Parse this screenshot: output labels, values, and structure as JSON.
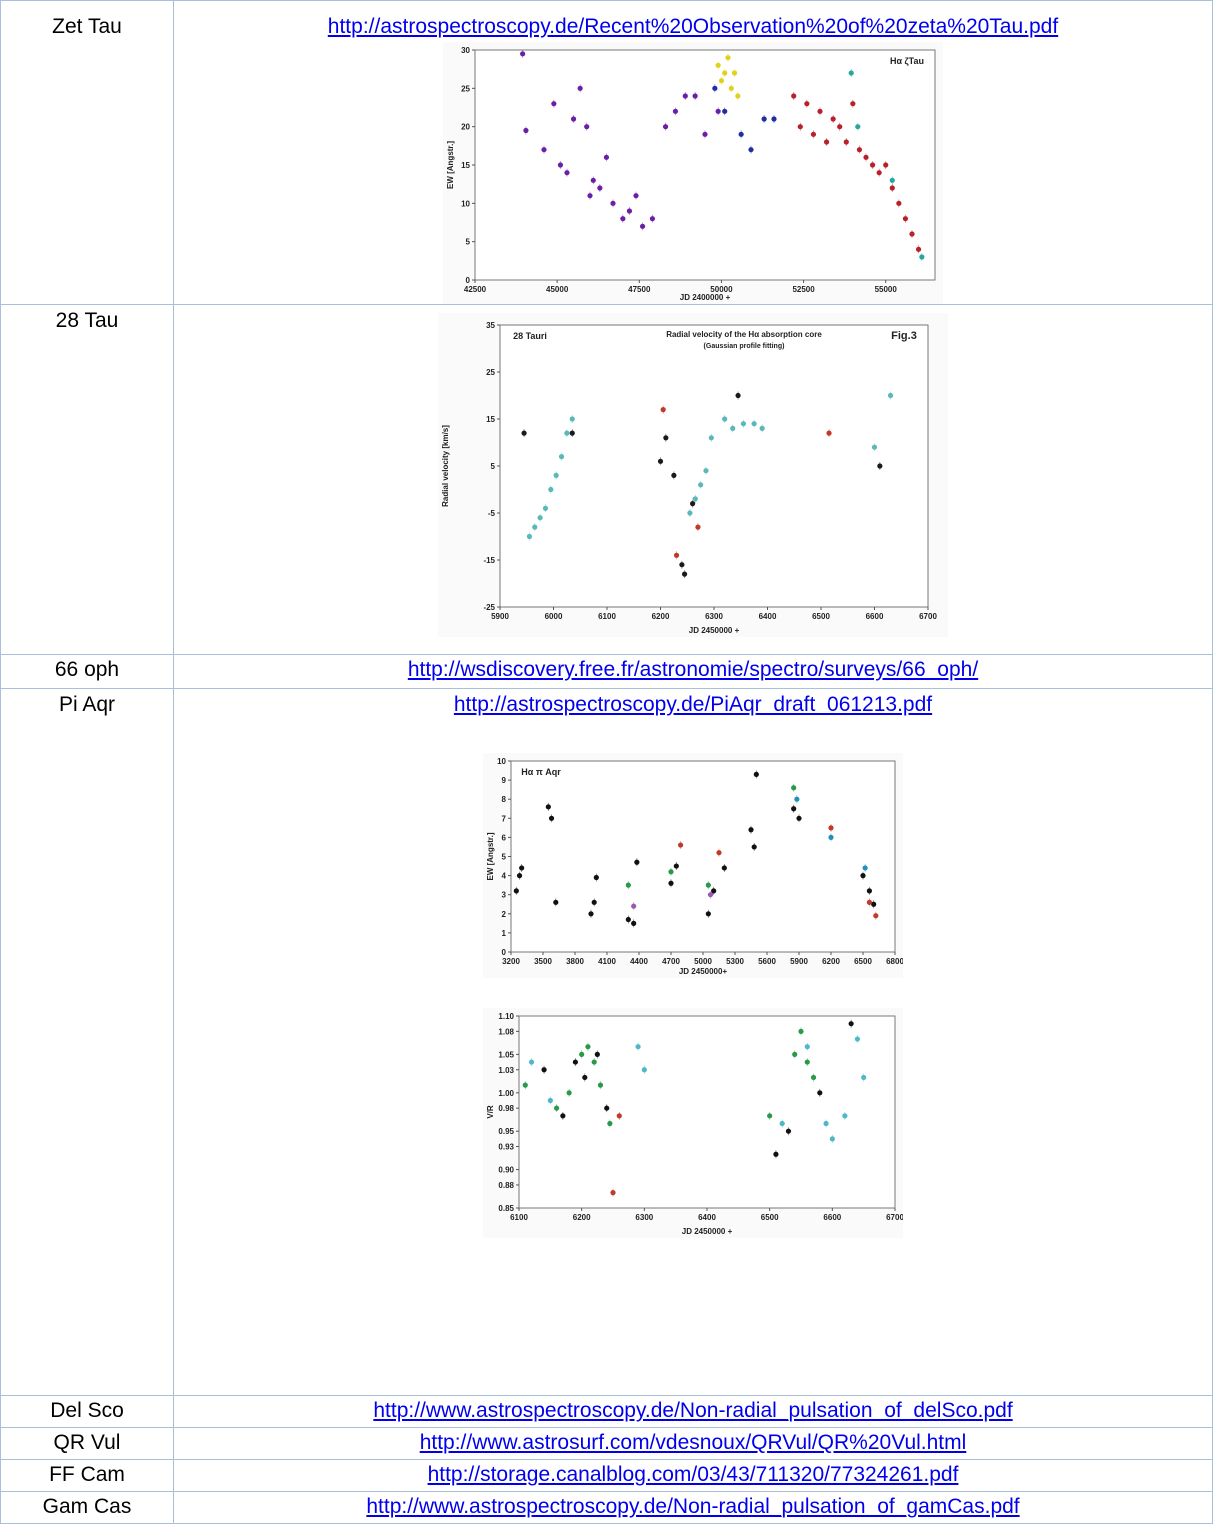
{
  "rows": [
    {
      "name": "Zet Tau",
      "link": "http://astrospectroscopy.de/Recent%20Observation%20of%20zeta%20Tau.pdf"
    },
    {
      "name": "28 Tau",
      "link": ""
    },
    {
      "name": "66 oph",
      "link": "http://wsdiscovery.free.fr/astronomie/spectro/surveys/66_oph/"
    },
    {
      "name": "Pi Aqr",
      "link": "http://astrospectroscopy.de/PiAqr_draft_061213.pdf"
    },
    {
      "name": "Del Sco",
      "link": "http://www.astrospectroscopy.de/Non-radial_pulsation_of_delSco.pdf"
    },
    {
      "name": "QR Vul",
      "link": "http://www.astrosurf.com/vdesnoux/QRVul/QR%20Vul.html"
    },
    {
      "name": "FF Cam",
      "link": "http://storage.canalblog.com/03/43/711320/77324261.pdf"
    },
    {
      "name": "Gam Cas",
      "link": "http://www.astrospectroscopy.de/Non-radial_pulsation_of_gamCas.pdf"
    }
  ],
  "chart_data": [
    {
      "type": "scatter",
      "annotation": "Hα ζTau",
      "xlabel": "JD 2400000 +",
      "ylabel": "EW [Angstr.]",
      "xlim": [
        42500,
        56500
      ],
      "ylim": [
        0,
        30
      ],
      "xticks": [
        "42500",
        "45000",
        "47500",
        "50000",
        "52500",
        "55000"
      ],
      "yticks": [
        "0",
        "5",
        "10",
        "15",
        "20",
        "25",
        "30"
      ],
      "series": [
        {
          "color": "#6a1fa6",
          "points": [
            [
              43950,
              29.5
            ],
            [
              44050,
              19.5
            ],
            [
              44600,
              17
            ],
            [
              44900,
              23
            ],
            [
              45100,
              15
            ],
            [
              45300,
              14
            ],
            [
              45500,
              21
            ],
            [
              45700,
              25
            ],
            [
              45900,
              20
            ],
            [
              46000,
              11
            ],
            [
              46100,
              13
            ],
            [
              46300,
              12
            ],
            [
              46500,
              16
            ],
            [
              46700,
              10
            ],
            [
              47000,
              8
            ],
            [
              47200,
              9
            ],
            [
              47400,
              11
            ],
            [
              47600,
              7
            ],
            [
              47900,
              8
            ],
            [
              48300,
              20
            ],
            [
              48600,
              22
            ],
            [
              48900,
              24
            ],
            [
              49200,
              24
            ],
            [
              49500,
              19
            ],
            [
              49900,
              22
            ]
          ]
        },
        {
          "color": "#e0d21c",
          "points": [
            [
              49900,
              28
            ],
            [
              50000,
              26
            ],
            [
              50100,
              27
            ],
            [
              50200,
              29
            ],
            [
              50300,
              25
            ],
            [
              50400,
              27
            ],
            [
              50500,
              24
            ]
          ]
        },
        {
          "color": "#1f2fa0",
          "points": [
            [
              49800,
              25
            ],
            [
              50100,
              22
            ],
            [
              50600,
              19
            ],
            [
              50900,
              17
            ],
            [
              51300,
              21
            ],
            [
              51600,
              21
            ]
          ]
        },
        {
          "color": "#b8202a",
          "points": [
            [
              52200,
              24
            ],
            [
              52400,
              20
            ],
            [
              52600,
              23
            ],
            [
              52800,
              19
            ],
            [
              53000,
              22
            ],
            [
              53200,
              18
            ],
            [
              53400,
              21
            ],
            [
              53600,
              20
            ],
            [
              53800,
              18
            ],
            [
              54000,
              23
            ],
            [
              54200,
              17
            ],
            [
              54400,
              16
            ],
            [
              54600,
              15
            ],
            [
              54800,
              14
            ],
            [
              55000,
              15
            ],
            [
              55200,
              12
            ],
            [
              55400,
              10
            ],
            [
              55600,
              8
            ],
            [
              55800,
              6
            ],
            [
              56000,
              4
            ]
          ]
        },
        {
          "color": "#28a6a0",
          "points": [
            [
              53950,
              27
            ],
            [
              54150,
              20
            ],
            [
              55200,
              13
            ],
            [
              56100,
              3
            ]
          ]
        }
      ]
    },
    {
      "type": "scatter",
      "title": "Radial velocity of the Hα absorption core",
      "subtitle": "(Gaussian profile fitting)",
      "annotation": "28 Tauri",
      "annotation2": "Fig.3",
      "xlabel": "JD 2450000 +",
      "ylabel": "Radial velocity [km/s]",
      "xlim": [
        5900,
        6700
      ],
      "ylim": [
        -25,
        35
      ],
      "xticks": [
        "5900",
        "6000",
        "6100",
        "6200",
        "6300",
        "6400",
        "6500",
        "6600",
        "6700"
      ],
      "yticks": [
        "-25",
        "-15",
        "-5",
        "5",
        "15",
        "25",
        "35"
      ],
      "series": [
        {
          "color": "#1a1a1a",
          "points": [
            [
              5945,
              12
            ],
            [
              6035,
              12
            ],
            [
              6200,
              6
            ],
            [
              6210,
              11
            ],
            [
              6225,
              3
            ],
            [
              6240,
              -16
            ],
            [
              6245,
              -18
            ],
            [
              6260,
              -3
            ],
            [
              6345,
              20
            ],
            [
              6610,
              5
            ]
          ]
        },
        {
          "color": "#5bb8b8",
          "points": [
            [
              5955,
              -10
            ],
            [
              5965,
              -8
            ],
            [
              5975,
              -6
            ],
            [
              5985,
              -4
            ],
            [
              5995,
              0
            ],
            [
              6005,
              3
            ],
            [
              6015,
              7
            ],
            [
              6025,
              12
            ],
            [
              6035,
              15
            ],
            [
              6255,
              -5
            ],
            [
              6265,
              -2
            ],
            [
              6275,
              1
            ],
            [
              6285,
              4
            ],
            [
              6295,
              11
            ],
            [
              6320,
              15
            ],
            [
              6335,
              13
            ],
            [
              6355,
              14
            ],
            [
              6375,
              14
            ],
            [
              6390,
              13
            ],
            [
              6600,
              9
            ],
            [
              6630,
              20
            ]
          ]
        },
        {
          "color": "#c0392b",
          "points": [
            [
              6205,
              17
            ],
            [
              6230,
              -14
            ],
            [
              6270,
              -8
            ],
            [
              6515,
              12
            ]
          ]
        }
      ]
    },
    {
      "type": "scatter",
      "annotation": "Hα π Aqr",
      "xlabel": "JD 2450000+",
      "ylabel": "EW [Angstr.]",
      "xlim": [
        3200,
        6800
      ],
      "ylim": [
        0,
        10
      ],
      "xticks": [
        "3200",
        "3500",
        "3800",
        "4100",
        "4400",
        "4700",
        "5000",
        "5300",
        "5600",
        "5900",
        "6200",
        "6500",
        "6800"
      ],
      "yticks": [
        "0",
        "1",
        "2",
        "3",
        "4",
        "5",
        "6",
        "7",
        "8",
        "9",
        "10"
      ],
      "series": [
        {
          "color": "#111111",
          "points": [
            [
              3250,
              3.2
            ],
            [
              3280,
              4.0
            ],
            [
              3300,
              4.4
            ],
            [
              3550,
              7.6
            ],
            [
              3580,
              7.0
            ],
            [
              3620,
              2.6
            ],
            [
              3950,
              2.0
            ],
            [
              3980,
              2.6
            ],
            [
              4000,
              3.9
            ],
            [
              4300,
              1.7
            ],
            [
              4350,
              1.5
            ],
            [
              4380,
              4.7
            ],
            [
              4700,
              3.6
            ],
            [
              4750,
              4.5
            ],
            [
              5050,
              2.0
            ],
            [
              5100,
              3.2
            ],
            [
              5200,
              4.4
            ],
            [
              5450,
              6.4
            ],
            [
              5480,
              5.5
            ],
            [
              5500,
              9.3
            ],
            [
              5850,
              7.5
            ],
            [
              5900,
              7.0
            ],
            [
              6500,
              4.0
            ],
            [
              6560,
              3.2
            ],
            [
              6600,
              2.5
            ]
          ]
        },
        {
          "color": "#2a9a4a",
          "points": [
            [
              4300,
              3.5
            ],
            [
              4700,
              4.2
            ],
            [
              5050,
              3.5
            ],
            [
              5850,
              8.6
            ]
          ]
        },
        {
          "color": "#c0392b",
          "points": [
            [
              4790,
              5.6
            ],
            [
              5150,
              5.2
            ],
            [
              6200,
              6.5
            ],
            [
              6560,
              2.6
            ],
            [
              6620,
              1.9
            ]
          ]
        },
        {
          "color": "#1f8fbf",
          "points": [
            [
              5880,
              8.0
            ],
            [
              6200,
              6.0
            ],
            [
              6520,
              4.4
            ]
          ]
        },
        {
          "color": "#9b59b6",
          "points": [
            [
              4350,
              2.4
            ],
            [
              5070,
              3.0
            ]
          ]
        }
      ]
    },
    {
      "type": "scatter",
      "xlabel": "JD 2450000 +",
      "ylabel": "V/R",
      "xlim": [
        6100,
        6700
      ],
      "ylim": [
        0.85,
        1.1
      ],
      "xticks": [
        "6100",
        "6200",
        "6300",
        "6400",
        "6500",
        "6600",
        "6700"
      ],
      "yticks": [
        "0.85",
        "0.88",
        "0.90",
        "0.93",
        "0.95",
        "0.98",
        "1.00",
        "1.03",
        "1.05",
        "1.08",
        "1.10"
      ],
      "series": [
        {
          "color": "#2a9a4a",
          "points": [
            [
              6110,
              1.01
            ],
            [
              6160,
              0.98
            ],
            [
              6180,
              1.0
            ],
            [
              6200,
              1.05
            ],
            [
              6210,
              1.06
            ],
            [
              6220,
              1.04
            ],
            [
              6230,
              1.01
            ],
            [
              6245,
              0.96
            ],
            [
              6500,
              0.97
            ],
            [
              6540,
              1.05
            ],
            [
              6550,
              1.08
            ],
            [
              6560,
              1.04
            ],
            [
              6570,
              1.02
            ]
          ]
        },
        {
          "color": "#111111",
          "points": [
            [
              6140,
              1.03
            ],
            [
              6170,
              0.97
            ],
            [
              6190,
              1.04
            ],
            [
              6205,
              1.02
            ],
            [
              6225,
              1.05
            ],
            [
              6240,
              0.98
            ],
            [
              6510,
              0.92
            ],
            [
              6530,
              0.95
            ],
            [
              6580,
              1.0
            ],
            [
              6630,
              1.09
            ]
          ]
        },
        {
          "color": "#4fb8c8",
          "points": [
            [
              6120,
              1.04
            ],
            [
              6150,
              0.99
            ],
            [
              6290,
              1.06
            ],
            [
              6300,
              1.03
            ],
            [
              6520,
              0.96
            ],
            [
              6560,
              1.06
            ],
            [
              6590,
              0.96
            ],
            [
              6600,
              0.94
            ],
            [
              6620,
              0.97
            ],
            [
              6640,
              1.07
            ],
            [
              6650,
              1.02
            ]
          ]
        },
        {
          "color": "#c0392b",
          "points": [
            [
              6250,
              0.87
            ],
            [
              6260,
              0.97
            ]
          ]
        }
      ]
    }
  ]
}
